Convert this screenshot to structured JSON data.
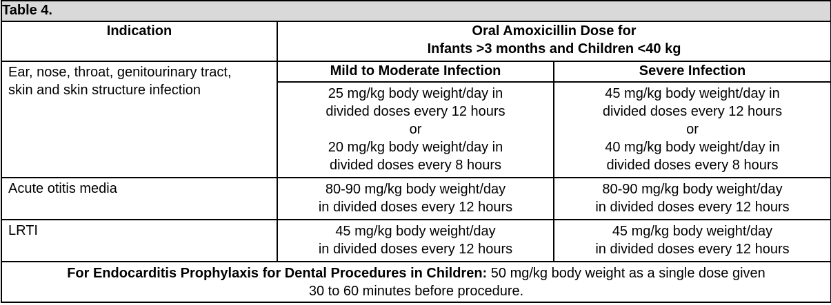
{
  "table": {
    "caption": "Table 4.",
    "header_indication": "Indication",
    "header_dose_line1": "Oral Amoxicillin Dose for",
    "header_dose_line2": "Infants >3 months and Children <40 kg",
    "subheader_mild": "Mild to Moderate Infection",
    "subheader_severe": "Severe Infection",
    "rows": [
      {
        "indication_line1": "Ear, nose, throat, genitourinary tract,",
        "indication_line2": "skin and skin structure infection",
        "mild": [
          "25 mg/kg body weight/day in",
          "divided doses every 12 hours",
          "or",
          "20 mg/kg body weight/day in",
          "divided doses every 8 hours"
        ],
        "severe": [
          "45 mg/kg body weight/day in",
          "divided doses every 12 hours",
          "or",
          "40 mg/kg body weight/day in",
          "divided doses every 8 hours"
        ]
      },
      {
        "indication": "Acute otitis media",
        "mild": [
          "80-90 mg/kg body weight/day",
          "in divided doses every 12 hours"
        ],
        "severe": [
          "80-90 mg/kg body weight/day",
          "in divided doses every 12 hours"
        ]
      },
      {
        "indication": "LRTI",
        "mild": [
          "45 mg/kg body weight/day",
          "in divided doses every 12 hours"
        ],
        "severe": [
          "45 mg/kg body weight/day",
          "in divided doses every 12 hours"
        ]
      }
    ],
    "footer_bold": "For Endocarditis Prophylaxis for Dental Procedures in Children:",
    "footer_text_line1": " 50 mg/kg body weight as a single dose given",
    "footer_text_line2": "30 to 60 minutes before procedure."
  }
}
